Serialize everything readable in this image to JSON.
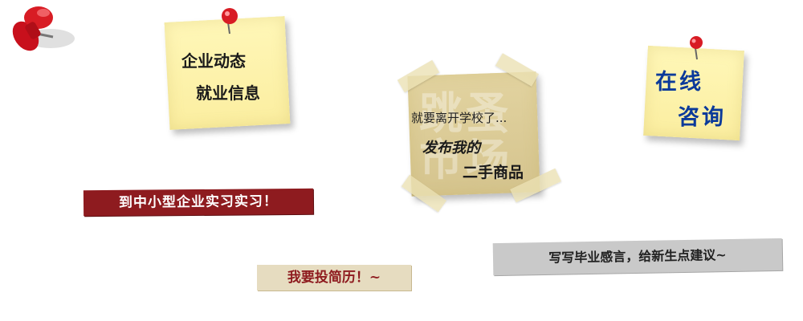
{
  "notes": {
    "news": {
      "line1": "企业动态",
      "line2": "就业信息"
    },
    "market": {
      "title": "就要离开学校了...",
      "line1": "发布我的",
      "line2": "二手商品",
      "watermark": "跳蚤市场"
    },
    "consult": {
      "line1": "在线",
      "line2": "咨询"
    }
  },
  "banners": {
    "internship": "到中小型企业实习实习！",
    "resume": "我要投简历！~",
    "graduation": "写写毕业感言，给新生点建议~"
  },
  "colors": {
    "pin_red": "#c8101c",
    "banner_red": "#8e1b1f",
    "note_yellow": "#fbeea0",
    "consult_blue": "#0b3a9a",
    "banner_gray": "#c9c9c9",
    "banner_tan": "#e6dcc0",
    "market_paper": "#dccd9c"
  },
  "icons": {
    "pin": "pushpin-icon"
  }
}
